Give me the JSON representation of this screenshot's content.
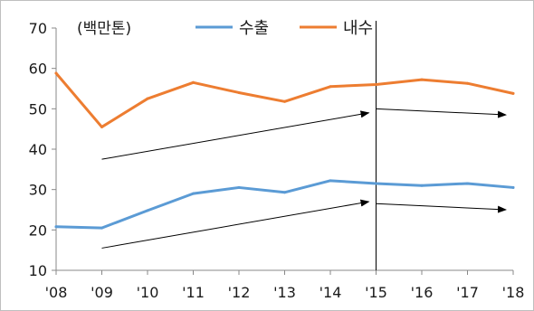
{
  "chart_data": {
    "type": "line",
    "unit_label": "(백만톤)",
    "categories": [
      "'08",
      "'09",
      "'10",
      "'11",
      "'12",
      "'13",
      "'14",
      "'15",
      "'16",
      "'17",
      "'18"
    ],
    "ylim": [
      10,
      70
    ],
    "yticks": [
      "10",
      "20",
      "30",
      "40",
      "50",
      "60",
      "70"
    ],
    "grid": false,
    "legend_position": "top-center",
    "series": [
      {
        "name": "수출",
        "color": "#5B9BD5",
        "values": [
          20.8,
          20.5,
          24.8,
          29.0,
          30.5,
          29.3,
          32.2,
          31.5,
          31.0,
          31.5,
          30.5
        ]
      },
      {
        "name": "내수",
        "color": "#ED7D31",
        "values": [
          58.8,
          45.5,
          52.5,
          56.5,
          54.0,
          51.8,
          55.5,
          56.0,
          57.2,
          56.3,
          53.8
        ]
      }
    ],
    "annotations": {
      "vertical_line_at": "'15",
      "trend_arrows": [
        {
          "series": "내수",
          "from": [
            "'09",
            37.5
          ],
          "to": [
            "'15",
            49.0
          ]
        },
        {
          "series": "내수",
          "from": [
            "'15",
            50.0
          ],
          "to": [
            "'18",
            48.5
          ]
        },
        {
          "series": "수출",
          "from": [
            "'09",
            15.5
          ],
          "to": [
            "'15",
            27.0
          ]
        },
        {
          "series": "수출",
          "from": [
            "'15",
            26.5
          ],
          "to": [
            "'18",
            25.0
          ]
        }
      ]
    }
  }
}
